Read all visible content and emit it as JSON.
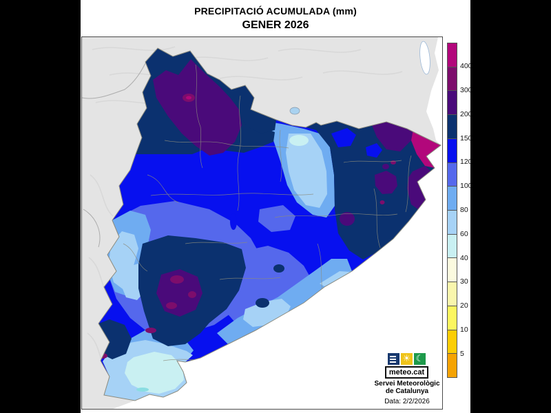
{
  "page": {
    "background": "#000000",
    "content_background": "#ffffff",
    "frame_border": "#4a4a4a"
  },
  "title": {
    "line1": "PRECIPITACIÓ ACUMULADA (mm)",
    "line2": "GENER 2026"
  },
  "legend": {
    "tick_labels": [
      "400",
      "300",
      "200",
      "150",
      "120",
      "100",
      "80",
      "60",
      "40",
      "30",
      "20",
      "10",
      "5"
    ],
    "colors": [
      "#B2077B",
      "#7D0D6C",
      "#4A0A7A",
      "#0B316F",
      "#0710EF",
      "#5568EC",
      "#6FACF1",
      "#A6D2F6",
      "#C9F0F2",
      "#FBFADF",
      "#F9F6AD",
      "#FCF65F",
      "#FCCD05",
      "#F5A303"
    ],
    "border_color": "#555555"
  },
  "map": {
    "sea_color": "#ffffff",
    "terrain_color": "#e4e4e4",
    "terrain_shade_color": "#d4d4d4",
    "outside_border_color": "#acacac",
    "catalonia_outline_color": "#8a8a7e",
    "comarca_line_color": "#8c8c7c",
    "lake_color": "#a9d2f0"
  },
  "branding": {
    "logo_text": "meteo.cat",
    "logo_menu_color": "#17386e",
    "logo_sun_color": "#f0c419",
    "logo_moon_color": "#1e9a4b",
    "credit_line1": "Servei Meteorològic",
    "credit_line2": "de Catalunya",
    "date_text": "Data: 2/2/2026"
  }
}
